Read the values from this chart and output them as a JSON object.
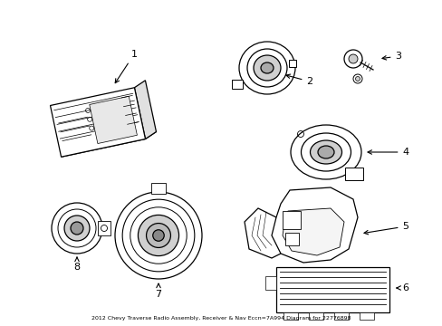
{
  "title": "2012 Chevy Traverse Radio Assembly, Receiver & Nav Eccn=7A994 Diagram for 22776898",
  "bg_color": "#ffffff",
  "line_color": "#000000",
  "fig_width": 4.89,
  "fig_height": 3.6,
  "dpi": 100
}
